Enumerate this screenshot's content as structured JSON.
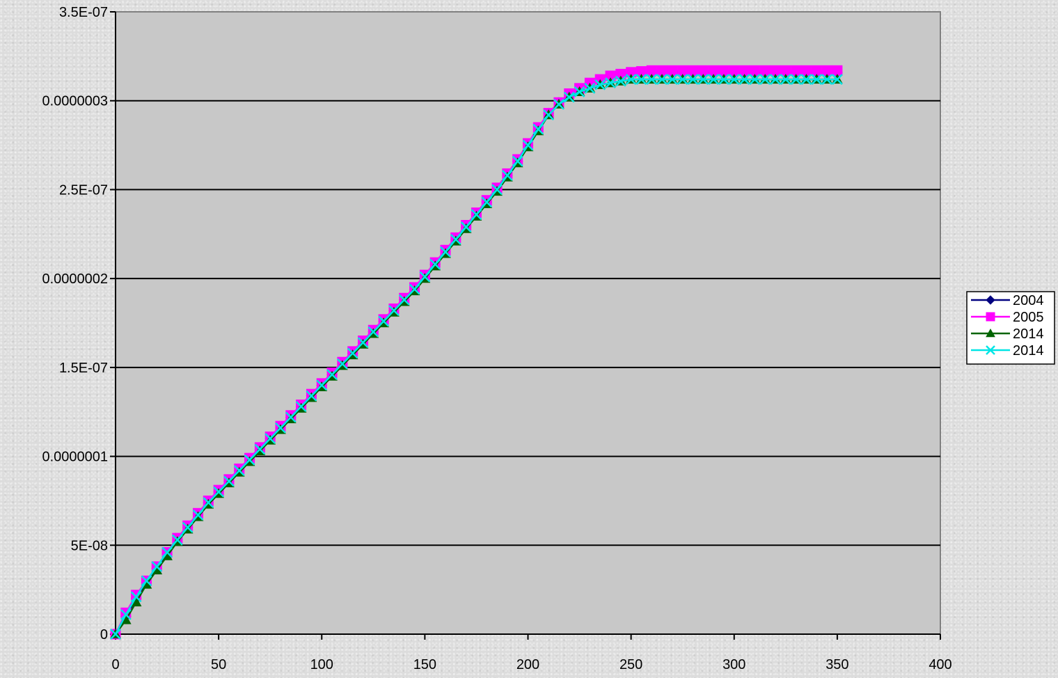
{
  "chart_data": {
    "type": "line",
    "title": "",
    "xlabel": "",
    "ylabel": "",
    "xlim": [
      0,
      400
    ],
    "ylim": [
      0,
      3.5e-07
    ],
    "grid": true,
    "legend_position": "right",
    "x_tick_values": [
      0,
      50,
      100,
      150,
      200,
      250,
      300,
      350,
      400
    ],
    "x_tick_labels": [
      "0",
      "50",
      "100",
      "150",
      "200",
      "250",
      "300",
      "350",
      "400"
    ],
    "y_tick_values": [
      0,
      5e-08,
      1e-07,
      1.5e-07,
      2e-07,
      2.5e-07,
      3e-07,
      3.5e-07
    ],
    "y_tick_labels": [
      "0",
      "5E-08",
      "0.0000001",
      "1.5E-07",
      "0.0000002",
      "2.5E-07",
      "0.0000003",
      "3.5E-07"
    ],
    "x": [
      0,
      5,
      10,
      15,
      20,
      25,
      30,
      35,
      40,
      45,
      50,
      55,
      60,
      65,
      70,
      75,
      80,
      85,
      90,
      95,
      100,
      105,
      110,
      115,
      120,
      125,
      130,
      135,
      140,
      145,
      150,
      155,
      160,
      165,
      170,
      175,
      180,
      185,
      190,
      195,
      200,
      205,
      210,
      215,
      220,
      225,
      230,
      235,
      240,
      245,
      250,
      255,
      260,
      265,
      270,
      275,
      280,
      285,
      290,
      295,
      300,
      305,
      310,
      315,
      320,
      325,
      330,
      335,
      340,
      345,
      350
    ],
    "series": [
      {
        "name": "2004",
        "marker": "diamond",
        "color": "#000080",
        "values": [
          0,
          1e-08,
          2e-08,
          2.9e-08,
          3.7e-08,
          4.5e-08,
          5.3e-08,
          6e-08,
          6.7e-08,
          7.4e-08,
          8e-08,
          8.6e-08,
          9.2e-08,
          9.8e-08,
          1.04e-07,
          1.1e-07,
          1.16e-07,
          1.22e-07,
          1.28e-07,
          1.34e-07,
          1.4e-07,
          1.46e-07,
          1.52e-07,
          1.58e-07,
          1.64e-07,
          1.7e-07,
          1.76e-07,
          1.82e-07,
          1.88e-07,
          1.94e-07,
          2.01e-07,
          2.08e-07,
          2.15e-07,
          2.22e-07,
          2.29e-07,
          2.36e-07,
          2.43e-07,
          2.5e-07,
          2.58e-07,
          2.66e-07,
          2.75e-07,
          2.84e-07,
          2.93e-07,
          2.99e-07,
          3.03e-07,
          3.06e-07,
          3.09e-07,
          3.11e-07,
          3.13e-07,
          3.14e-07,
          3.15e-07,
          3.155e-07,
          3.16e-07,
          3.16e-07,
          3.16e-07,
          3.16e-07,
          3.16e-07,
          3.16e-07,
          3.16e-07,
          3.16e-07,
          3.16e-07,
          3.16e-07,
          3.16e-07,
          3.16e-07,
          3.16e-07,
          3.16e-07,
          3.16e-07,
          3.16e-07,
          3.16e-07,
          3.16e-07,
          3.16e-07
        ]
      },
      {
        "name": "2005",
        "marker": "square",
        "color": "#ff00ff",
        "values": [
          0,
          1.2e-08,
          2.2e-08,
          3e-08,
          3.8e-08,
          4.6e-08,
          5.4e-08,
          6.1e-08,
          6.8e-08,
          7.5e-08,
          8.1e-08,
          8.7e-08,
          9.3e-08,
          9.9e-08,
          1.05e-07,
          1.11e-07,
          1.17e-07,
          1.23e-07,
          1.29e-07,
          1.35e-07,
          1.41e-07,
          1.47e-07,
          1.53e-07,
          1.59e-07,
          1.65e-07,
          1.71e-07,
          1.77e-07,
          1.83e-07,
          1.89e-07,
          1.95e-07,
          2.02e-07,
          2.09e-07,
          2.16e-07,
          2.23e-07,
          2.3e-07,
          2.37e-07,
          2.44e-07,
          2.51e-07,
          2.59e-07,
          2.67e-07,
          2.76e-07,
          2.85e-07,
          2.93e-07,
          2.99e-07,
          3.04e-07,
          3.07e-07,
          3.1e-07,
          3.12e-07,
          3.14e-07,
          3.15e-07,
          3.16e-07,
          3.165e-07,
          3.17e-07,
          3.17e-07,
          3.17e-07,
          3.17e-07,
          3.17e-07,
          3.17e-07,
          3.17e-07,
          3.17e-07,
          3.17e-07,
          3.17e-07,
          3.17e-07,
          3.17e-07,
          3.17e-07,
          3.17e-07,
          3.17e-07,
          3.17e-07,
          3.17e-07,
          3.17e-07,
          3.17e-07
        ]
      },
      {
        "name": "2014",
        "marker": "triangle",
        "color": "#006400",
        "values": [
          0,
          8e-09,
          1.8e-08,
          2.8e-08,
          3.6e-08,
          4.4e-08,
          5.2e-08,
          5.9e-08,
          6.6e-08,
          7.3e-08,
          7.9e-08,
          8.5e-08,
          9.1e-08,
          9.7e-08,
          1.03e-07,
          1.09e-07,
          1.15e-07,
          1.21e-07,
          1.27e-07,
          1.33e-07,
          1.39e-07,
          1.45e-07,
          1.51e-07,
          1.57e-07,
          1.63e-07,
          1.69e-07,
          1.75e-07,
          1.81e-07,
          1.87e-07,
          1.93e-07,
          2e-07,
          2.07e-07,
          2.14e-07,
          2.21e-07,
          2.28e-07,
          2.35e-07,
          2.42e-07,
          2.49e-07,
          2.57e-07,
          2.65e-07,
          2.74e-07,
          2.83e-07,
          2.92e-07,
          2.98e-07,
          3.02e-07,
          3.05e-07,
          3.07e-07,
          3.09e-07,
          3.1e-07,
          3.11e-07,
          3.12e-07,
          3.12e-07,
          3.12e-07,
          3.12e-07,
          3.12e-07,
          3.12e-07,
          3.12e-07,
          3.12e-07,
          3.12e-07,
          3.12e-07,
          3.12e-07,
          3.12e-07,
          3.12e-07,
          3.12e-07,
          3.12e-07,
          3.12e-07,
          3.12e-07,
          3.12e-07,
          3.12e-07,
          3.12e-07,
          3.12e-07
        ]
      },
      {
        "name": "2014",
        "marker": "x",
        "color": "#00e5e5",
        "values": [
          0,
          1.1e-08,
          2.1e-08,
          3e-08,
          3.8e-08,
          4.6e-08,
          5.3e-08,
          6e-08,
          6.7e-08,
          7.4e-08,
          8e-08,
          8.6e-08,
          9.2e-08,
          9.8e-08,
          1.04e-07,
          1.1e-07,
          1.16e-07,
          1.22e-07,
          1.28e-07,
          1.34e-07,
          1.4e-07,
          1.46e-07,
          1.52e-07,
          1.58e-07,
          1.64e-07,
          1.7e-07,
          1.76e-07,
          1.82e-07,
          1.88e-07,
          1.94e-07,
          2.01e-07,
          2.08e-07,
          2.15e-07,
          2.22e-07,
          2.29e-07,
          2.36e-07,
          2.43e-07,
          2.5e-07,
          2.58e-07,
          2.66e-07,
          2.75e-07,
          2.84e-07,
          2.92e-07,
          2.98e-07,
          3.02e-07,
          3.05e-07,
          3.07e-07,
          3.09e-07,
          3.1e-07,
          3.11e-07,
          3.12e-07,
          3.12e-07,
          3.12e-07,
          3.12e-07,
          3.12e-07,
          3.12e-07,
          3.12e-07,
          3.12e-07,
          3.12e-07,
          3.12e-07,
          3.12e-07,
          3.12e-07,
          3.12e-07,
          3.12e-07,
          3.12e-07,
          3.12e-07,
          3.12e-07,
          3.12e-07,
          3.12e-07,
          3.12e-07,
          3.12e-07
        ]
      }
    ]
  }
}
